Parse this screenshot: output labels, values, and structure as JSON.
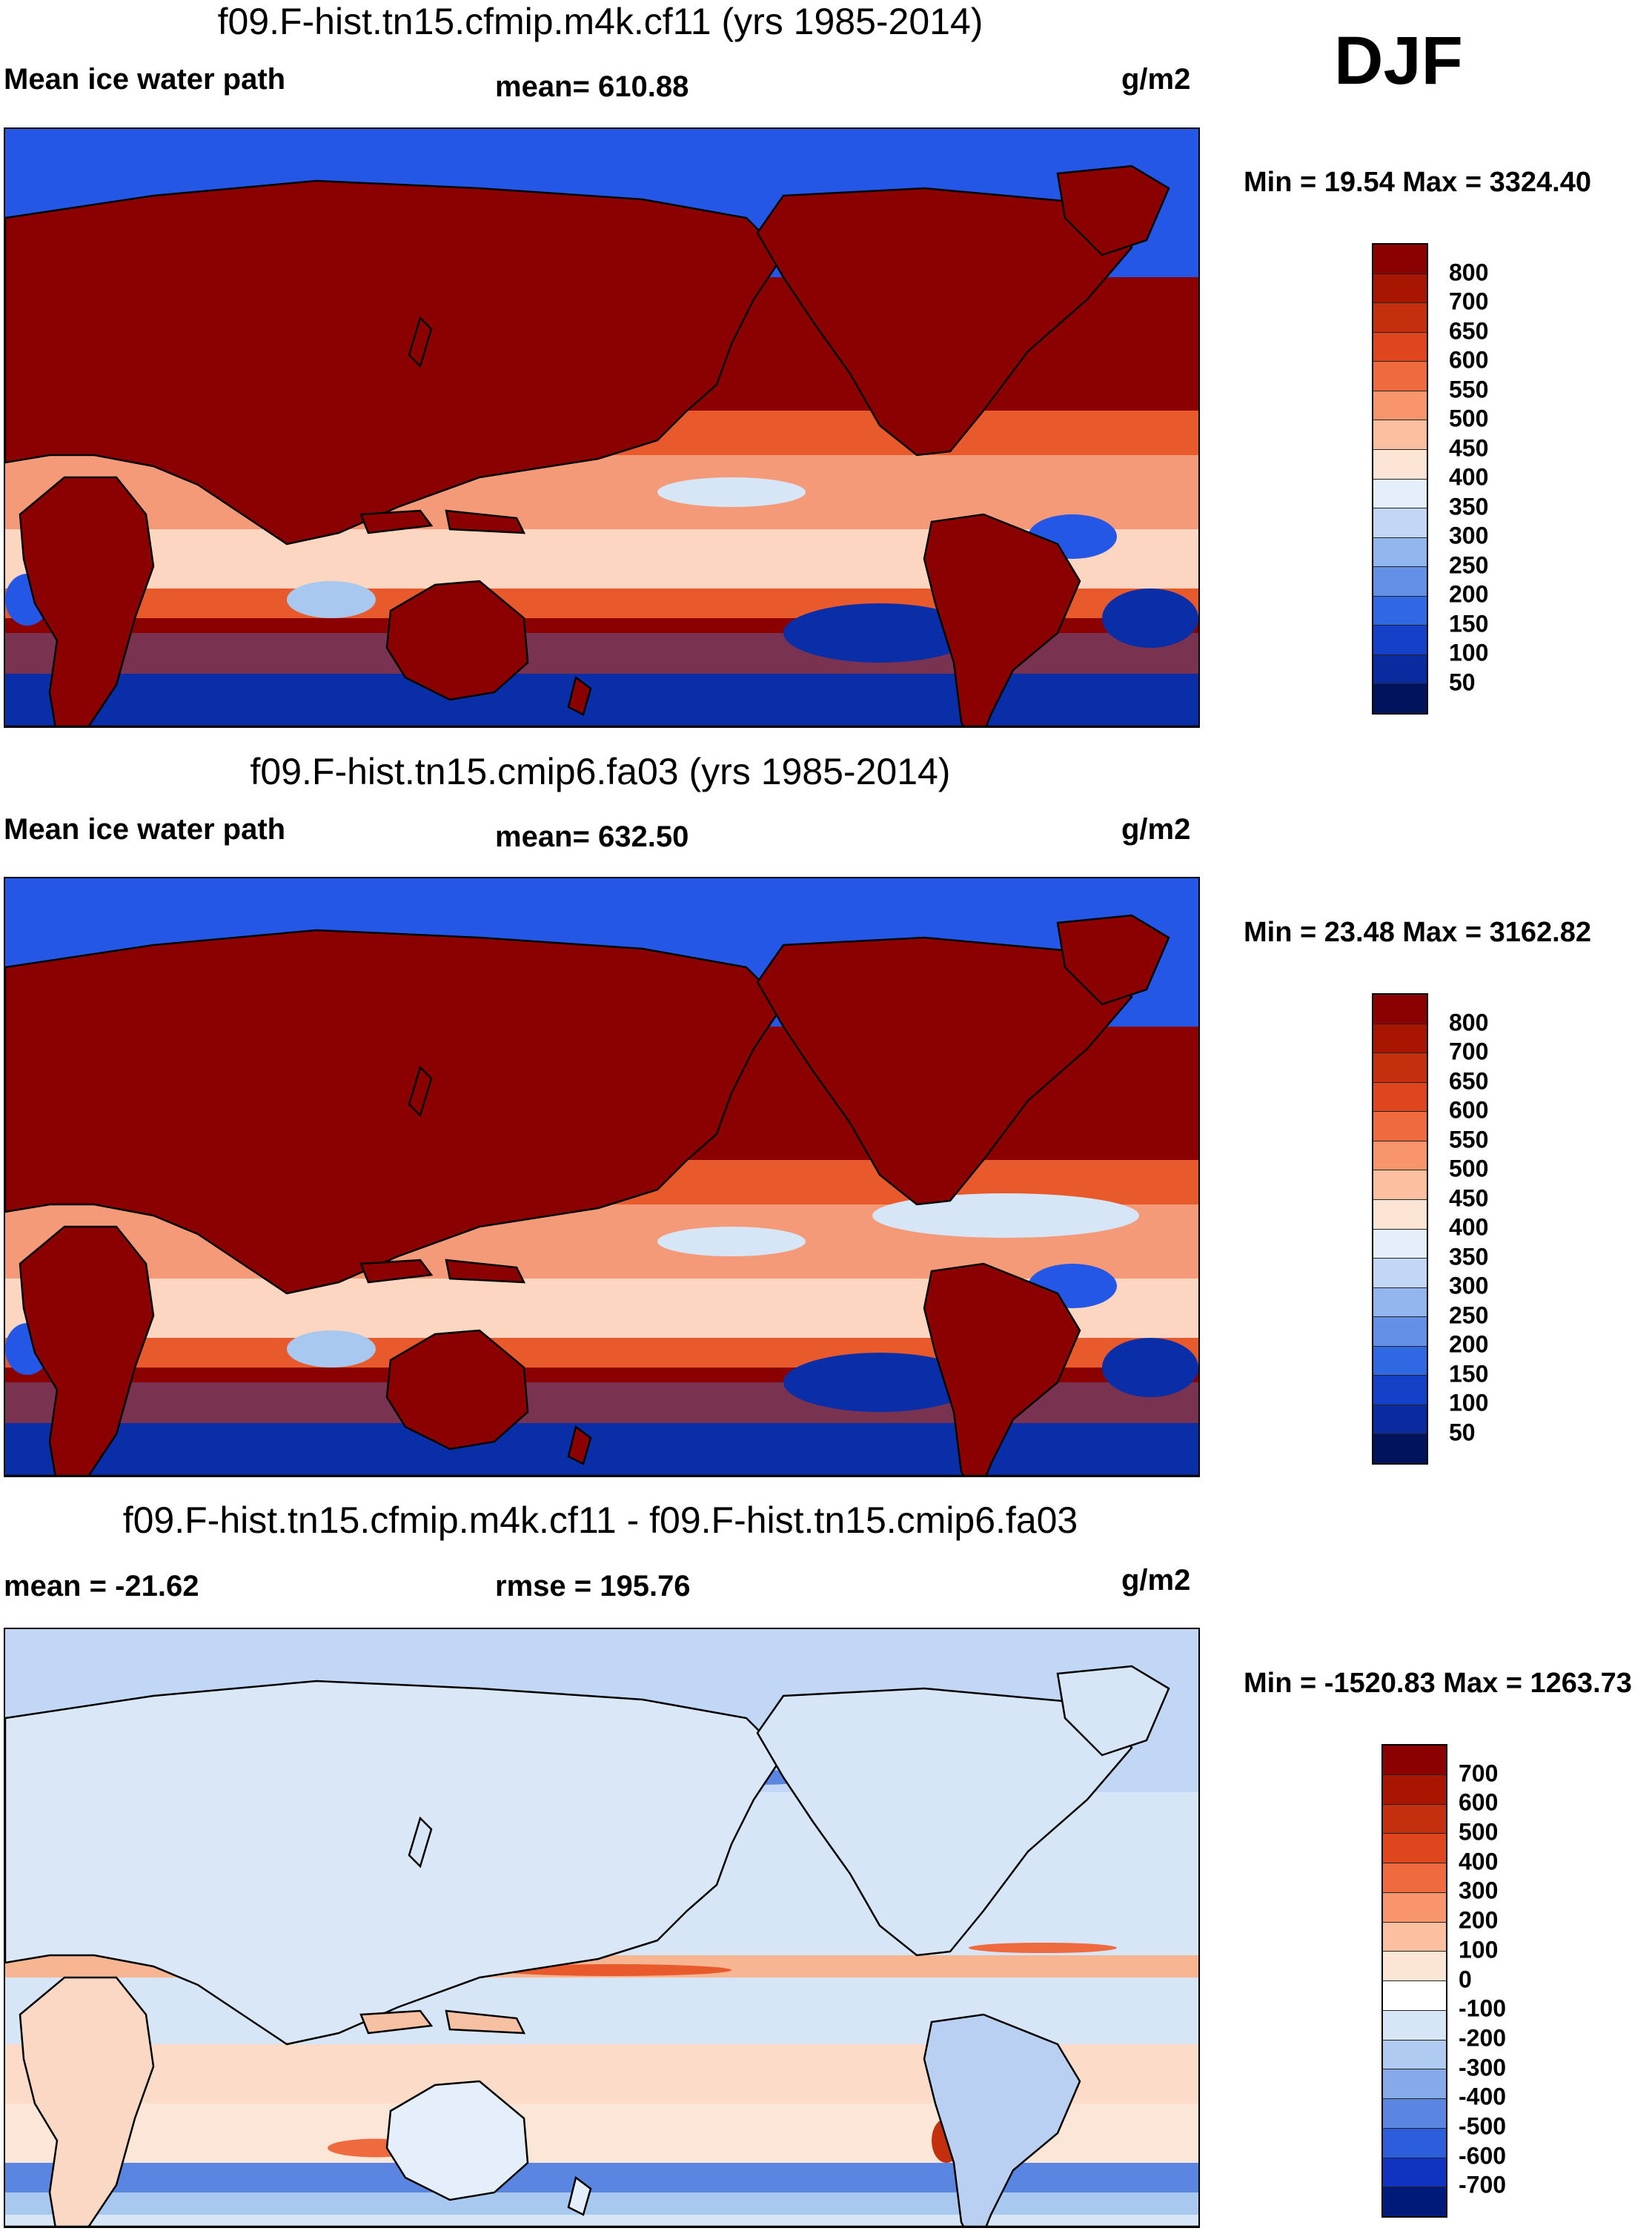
{
  "season": "DJF",
  "colors": {
    "deep_red": "#8b0000",
    "red": "#c4300d",
    "orange": "#e85a2c",
    "salmon": "#f59a78",
    "peach": "#fcd6c0",
    "pale": "#fbeee4",
    "light_blue": "#d7e6f6",
    "sky": "#a8c8ef",
    "mid_blue": "#5a8ee6",
    "blue": "#2457e6",
    "dark_blue": "#0a2ea8",
    "navy": "#00135c",
    "coast": "#000000"
  },
  "panels": [
    {
      "title": "f09.F-hist.tn15.cfmip.m4k.cf11 (yrs 1985-2014)",
      "left_label": "Mean ice water path",
      "center_label": "mean= 610.88",
      "units": "g/m2",
      "minmax": "Min =  19.54 Max = 3324.40",
      "map_name": "ice-water-path-map-cf11",
      "colorbar": {
        "labels": [
          "800",
          "700",
          "650",
          "600",
          "550",
          "500",
          "450",
          "400",
          "350",
          "300",
          "250",
          "200",
          "150",
          "100",
          "50"
        ],
        "colors": [
          "#8b0000",
          "#a81500",
          "#c4300d",
          "#e0461e",
          "#ef6a3e",
          "#f8956c",
          "#fcbfa0",
          "#fde5d5",
          "#e5eefb",
          "#c2d7f5",
          "#94b6ef",
          "#638fe7",
          "#3068e4",
          "#1441c8",
          "#0a2aa0",
          "#00135c"
        ]
      }
    },
    {
      "title": "f09.F-hist.tn15.cmip6.fa03 (yrs 1985-2014)",
      "left_label": "Mean ice water path",
      "center_label": "mean= 632.50",
      "units": "g/m2",
      "minmax": "Min =  23.48 Max = 3162.82",
      "map_name": "ice-water-path-map-fa03",
      "colorbar": {
        "labels": [
          "800",
          "700",
          "650",
          "600",
          "550",
          "500",
          "450",
          "400",
          "350",
          "300",
          "250",
          "200",
          "150",
          "100",
          "50"
        ],
        "colors": [
          "#8b0000",
          "#a81500",
          "#c4300d",
          "#e0461e",
          "#ef6a3e",
          "#f8956c",
          "#fcbfa0",
          "#fde5d5",
          "#e5eefb",
          "#c2d7f5",
          "#94b6ef",
          "#638fe7",
          "#3068e4",
          "#1441c8",
          "#0a2aa0",
          "#00135c"
        ]
      }
    },
    {
      "title": "f09.F-hist.tn15.cfmip.m4k.cf11 - f09.F-hist.tn15.cmip6.fa03",
      "left_label": "mean = -21.62",
      "center_label": "rmse = 195.76",
      "units": "g/m2",
      "minmax": "Min = -1520.83 Max = 1263.73",
      "map_name": "ice-water-path-difference-map",
      "colorbar": {
        "labels": [
          "700",
          "600",
          "500",
          "400",
          "300",
          "200",
          "100",
          "0",
          "-100",
          "-200",
          "-300",
          "-400",
          "-500",
          "-600",
          "-700"
        ],
        "colors": [
          "#8b0000",
          "#a81500",
          "#c4300d",
          "#e0461e",
          "#ef6a3e",
          "#f8956c",
          "#fcbfa0",
          "#fde5d5",
          "#ffffff",
          "#d7e6f6",
          "#b0cbf1",
          "#86a9ea",
          "#5a86e2",
          "#2c5edc",
          "#1034c0",
          "#001a7a"
        ]
      }
    }
  ]
}
